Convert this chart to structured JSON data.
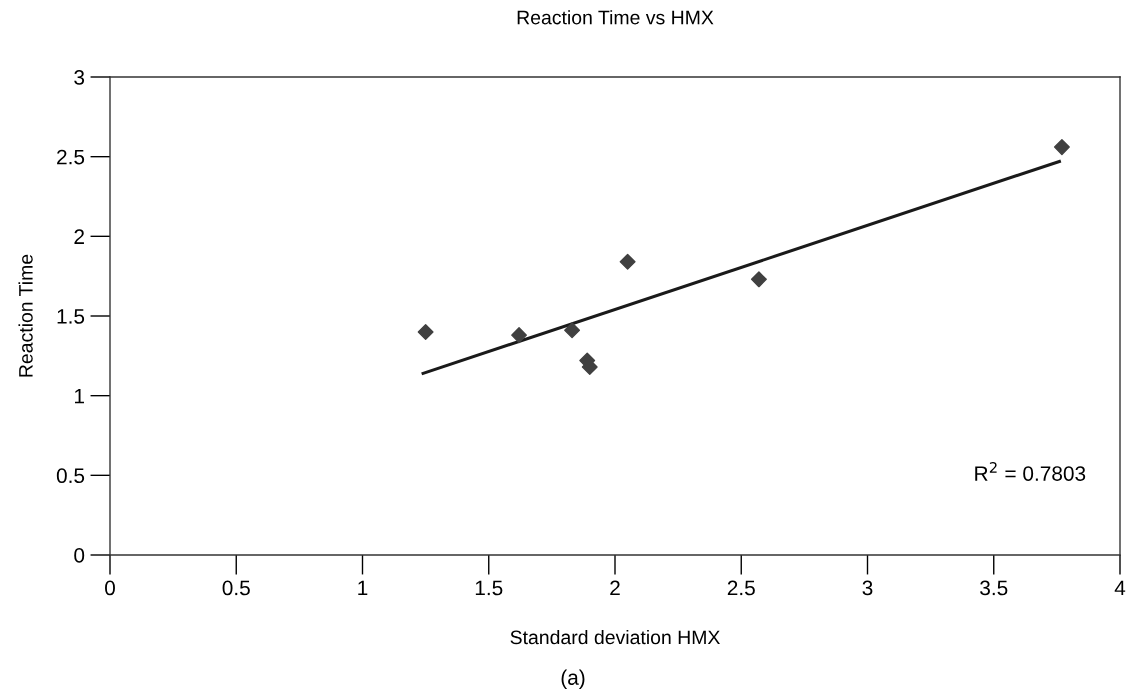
{
  "chart_data": {
    "type": "scatter",
    "title": "Reaction Time vs HMX",
    "xlabel": "Standard deviation HMX",
    "ylabel": "Reaction Time",
    "series": [
      {
        "color": "#404040",
        "x": [
          1.25,
          1.62,
          1.83,
          1.89,
          1.9,
          2.05,
          2.57,
          3.77
        ],
        "values": [
          1.4,
          1.38,
          1.41,
          1.22,
          1.18,
          1.84,
          1.73,
          2.56
        ],
        "marker": "diamond"
      },
      {
        "type": "line",
        "color": "#1a1a1a",
        "x": [
          1.24,
          3.76
        ],
        "values": [
          1.14,
          2.47
        ],
        "marker": "none",
        "line_style": "solid"
      }
    ],
    "xlim": [
      0,
      4
    ],
    "xticks": [
      0,
      0.5,
      1,
      1.5,
      2,
      2.5,
      3,
      3.5,
      4
    ],
    "ylim": [
      0,
      3
    ],
    "yticks": [
      0,
      0.5,
      1,
      1.5,
      2,
      2.5,
      3
    ],
    "grid": false,
    "legend": false,
    "annotations": [
      "R$^{2}$ = 0.7803",
      "(a)"
    ]
  }
}
